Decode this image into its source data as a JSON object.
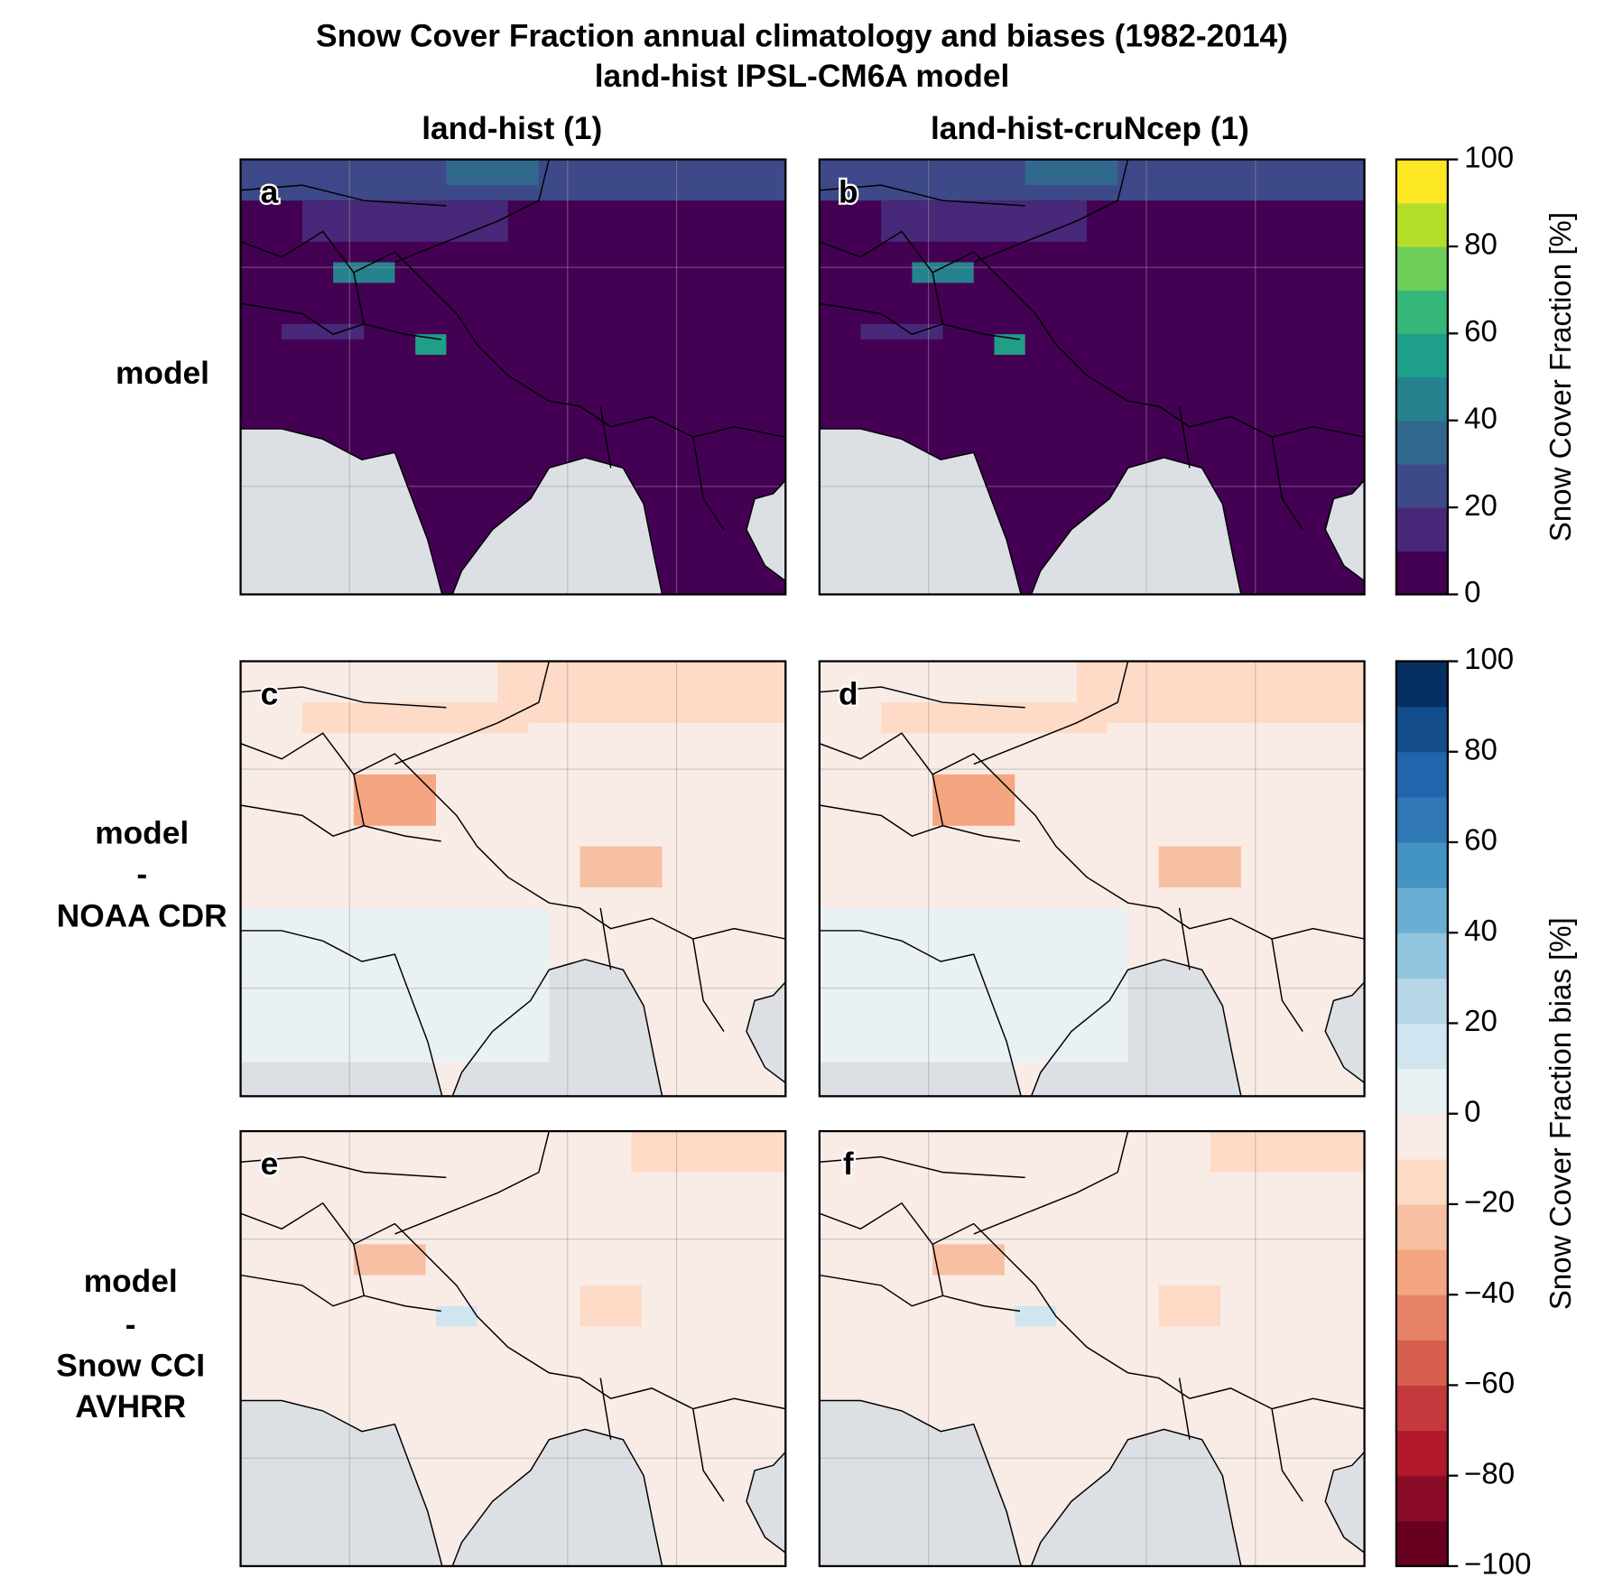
{
  "title": "Snow Cover Fraction annual climatology and biases (1982-2014)",
  "subtitle": "land-hist IPSL-CM6A model",
  "columns": [
    "land-hist (1)",
    "land-hist-cruNcep (1)"
  ],
  "rows": [
    [
      "model"
    ],
    [
      "model",
      "-",
      "NOAA CDR"
    ],
    [
      "model",
      "-",
      "Snow CCI",
      "AVHRR"
    ]
  ],
  "panels": [
    "a",
    "b",
    "c",
    "d",
    "e",
    "f"
  ],
  "colorbars": [
    {
      "label": "Snow Cover Fraction [%]",
      "lim": [
        0,
        100
      ],
      "ticks": [
        0,
        20,
        40,
        60,
        80,
        100
      ],
      "colors": [
        "#440154",
        "#482878",
        "#3e4989",
        "#31688e",
        "#26828e",
        "#1f9e89",
        "#35b779",
        "#6ece58",
        "#b5de2b",
        "#fde725"
      ]
    },
    {
      "label": "Snow Cover Fraction bias [%]",
      "lim": [
        -100,
        100
      ],
      "ticks": [
        {
          "value": -100,
          "label": "−100"
        },
        {
          "value": -80,
          "label": "−80"
        },
        {
          "value": -60,
          "label": "−60"
        },
        {
          "value": -40,
          "label": "−40"
        },
        {
          "value": -20,
          "label": "−20"
        },
        0,
        20,
        40,
        60,
        80,
        100
      ],
      "colors": [
        "#67001f",
        "#8a0b25",
        "#b2182b",
        "#c4393d",
        "#d6604d",
        "#e58267",
        "#f4a582",
        "#f7c0a2",
        "#fddbc7",
        "#f9ece6",
        "#eaf1f5",
        "#d1e5f0",
        "#b6d6e8",
        "#92c5de",
        "#6aaed3",
        "#4393c3",
        "#3079b6",
        "#2166ac",
        "#134d8b",
        "#053061"
      ]
    }
  ]
}
